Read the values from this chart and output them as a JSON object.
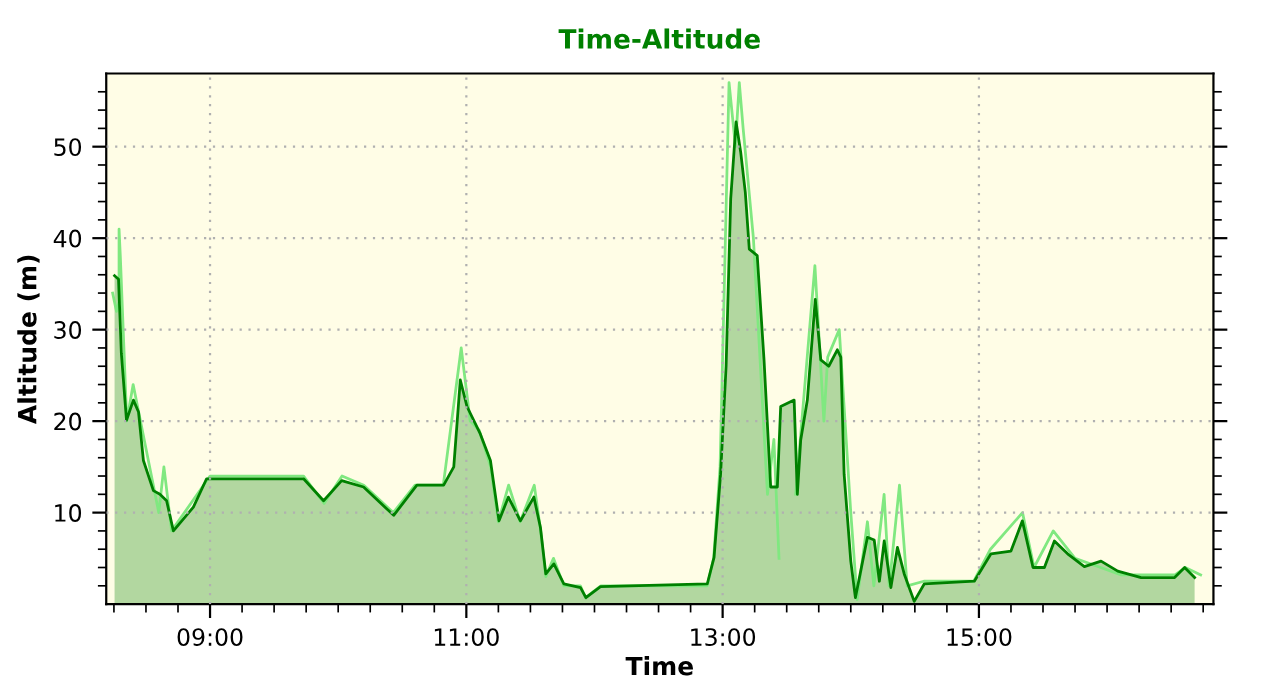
{
  "chart_data": {
    "type": "area",
    "title": "Time-Altitude",
    "xlabel": "Time",
    "ylabel": "Altitude (m)",
    "xlim": [
      8.19,
      16.83
    ],
    "ylim": [
      0,
      58
    ],
    "xticks": [
      {
        "value": 8.25,
        "label": null
      },
      {
        "value": 8.5,
        "label": null
      },
      {
        "value": 8.75,
        "label": null
      },
      {
        "value": 9,
        "label": "09:00"
      },
      {
        "value": 9.25,
        "label": null
      },
      {
        "value": 9.5,
        "label": null
      },
      {
        "value": 9.75,
        "label": null
      },
      {
        "value": 10,
        "label": null
      },
      {
        "value": 10.25,
        "label": null
      },
      {
        "value": 10.5,
        "label": null
      },
      {
        "value": 10.75,
        "label": null
      },
      {
        "value": 11,
        "label": "11:00"
      },
      {
        "value": 11.25,
        "label": null
      },
      {
        "value": 11.5,
        "label": null
      },
      {
        "value": 11.75,
        "label": null
      },
      {
        "value": 12,
        "label": null
      },
      {
        "value": 12.25,
        "label": null
      },
      {
        "value": 12.5,
        "label": null
      },
      {
        "value": 12.75,
        "label": null
      },
      {
        "value": 13,
        "label": "13:00"
      },
      {
        "value": 13.25,
        "label": null
      },
      {
        "value": 13.5,
        "label": null
      },
      {
        "value": 13.75,
        "label": null
      },
      {
        "value": 14,
        "label": null
      },
      {
        "value": 14.25,
        "label": null
      },
      {
        "value": 14.5,
        "label": null
      },
      {
        "value": 14.75,
        "label": null
      },
      {
        "value": 15,
        "label": "15:00"
      },
      {
        "value": 15.25,
        "label": null
      },
      {
        "value": 15.5,
        "label": null
      },
      {
        "value": 15.75,
        "label": null
      },
      {
        "value": 16,
        "label": null
      },
      {
        "value": 16.25,
        "label": null
      },
      {
        "value": 16.5,
        "label": null
      },
      {
        "value": 16.75,
        "label": null
      }
    ],
    "yticks": [
      {
        "value": 2,
        "label": null
      },
      {
        "value": 4,
        "label": null
      },
      {
        "value": 6,
        "label": null
      },
      {
        "value": 8,
        "label": null
      },
      10,
      {
        "value": 12,
        "label": null
      },
      {
        "value": 14,
        "label": null
      },
      {
        "value": 16,
        "label": null
      },
      {
        "value": 18,
        "label": null
      },
      20,
      {
        "value": 22,
        "label": null
      },
      {
        "value": 24,
        "label": null
      },
      {
        "value": 26,
        "label": null
      },
      {
        "value": 28,
        "label": null
      },
      30,
      {
        "value": 32,
        "label": null
      },
      {
        "value": 34,
        "label": null
      },
      {
        "value": 36,
        "label": null
      },
      {
        "value": 38,
        "label": null
      },
      40,
      {
        "value": 42,
        "label": null
      },
      {
        "value": 44,
        "label": null
      },
      {
        "value": 46,
        "label": null
      },
      {
        "value": 48,
        "label": null
      },
      50,
      {
        "value": 52,
        "label": null
      },
      {
        "value": 54,
        "label": null
      },
      {
        "value": 56,
        "label": null
      }
    ],
    "grid": true,
    "series": [
      {
        "type": "line",
        "color": "#80e880",
        "x": [
          8.24,
          8.27,
          8.29,
          8.29,
          8.3,
          8.35,
          8.4,
          8.6,
          8.64,
          8.7,
          9.0,
          9.73,
          9.89,
          10.03,
          10.2,
          10.43,
          10.6,
          10.82,
          10.96,
          11.03,
          11.1,
          11.19,
          11.25,
          11.33,
          11.42,
          11.53,
          11.58,
          11.62,
          11.68,
          11.76,
          11.89,
          11.93,
          12.05,
          12.88,
          12.93,
          12.98,
          13.05,
          13.1,
          13.13,
          13.16,
          13.24,
          13.35,
          13.4,
          13.44,
          13.48,
          13.55,
          13.57,
          13.72,
          13.79,
          13.82,
          13.91,
          14.0,
          14.05,
          14.13,
          14.18,
          14.26,
          14.3,
          14.38,
          14.44,
          14.57,
          14.96,
          15.09,
          15.34,
          15.43,
          15.58,
          15.75,
          15.95,
          16.11,
          16.53,
          16.61,
          16.73
        ],
        "values": [
          34,
          32,
          33,
          41,
          38,
          20,
          24,
          10,
          15,
          8,
          14,
          14,
          11,
          14,
          13,
          10,
          13,
          13,
          28,
          20,
          19,
          15,
          9,
          13,
          9,
          13,
          8,
          3,
          5,
          2,
          2,
          0.7,
          2,
          2,
          5,
          15,
          57,
          50,
          57,
          52,
          40,
          12,
          18,
          5,
          null,
          null,
          12,
          37,
          20,
          27,
          30,
          10,
          0.5,
          9,
          2,
          12,
          2,
          13,
          2,
          2.5,
          2.5,
          6,
          10,
          4,
          8,
          5,
          4,
          3.2,
          3.2,
          4,
          3.2
        ]
      },
      {
        "color": "#008000",
        "x": [
          8.255,
          8.286,
          8.308,
          8.348,
          8.402,
          8.442,
          8.48,
          8.558,
          8.609,
          8.661,
          8.714,
          8.87,
          8.973,
          9.078,
          9.73,
          9.886,
          10.027,
          10.198,
          10.433,
          10.614,
          10.823,
          10.902,
          10.953,
          11.005,
          11.109,
          11.188,
          11.255,
          11.328,
          11.422,
          11.527,
          11.578,
          11.62,
          11.683,
          11.761,
          11.891,
          11.933,
          12.047,
          12.88,
          12.933,
          12.984,
          13.027,
          13.063,
          13.105,
          13.141,
          13.177,
          13.208,
          13.27,
          13.323,
          13.375,
          13.427,
          13.453,
          13.558,
          13.583,
          13.609,
          13.661,
          13.723,
          13.766,
          13.828,
          13.895,
          13.922,
          13.948,
          14.0,
          14.036,
          14.13,
          14.183,
          14.223,
          14.261,
          14.313,
          14.364,
          14.417,
          14.495,
          14.573,
          14.964,
          15.094,
          15.25,
          15.339,
          15.422,
          15.511,
          15.589,
          15.692,
          15.823,
          15.953,
          16.083,
          16.266,
          16.527,
          16.605,
          16.683
        ],
        "values": [
          35.9,
          35.5,
          27.4,
          20.1,
          22.3,
          21,
          15.7,
          12.4,
          12,
          11.3,
          8,
          10.6,
          13.7,
          13.7,
          13.7,
          11.3,
          13.5,
          12.8,
          9.7,
          13,
          13,
          15,
          24.5,
          21.6,
          18.6,
          15.7,
          9.1,
          11.7,
          9.1,
          11.7,
          8.4,
          3.3,
          4.4,
          2.2,
          1.8,
          0.7,
          1.9,
          2.2,
          5.1,
          14.2,
          26,
          44.3,
          52.7,
          49.4,
          45,
          38.8,
          38.1,
          26.7,
          12.8,
          12.8,
          21.6,
          22.3,
          12,
          17.9,
          22.3,
          33.3,
          26.7,
          26,
          27.8,
          27,
          14.2,
          4.7,
          0.7,
          7.3,
          7,
          2.5,
          6.9,
          1.8,
          6.2,
          3.3,
          0.3,
          2.2,
          2.5,
          5.5,
          5.8,
          9.1,
          4,
          4,
          6.9,
          5.5,
          4.1,
          4.7,
          3.6,
          2.9,
          2.9,
          4,
          2.9
        ]
      }
    ]
  }
}
